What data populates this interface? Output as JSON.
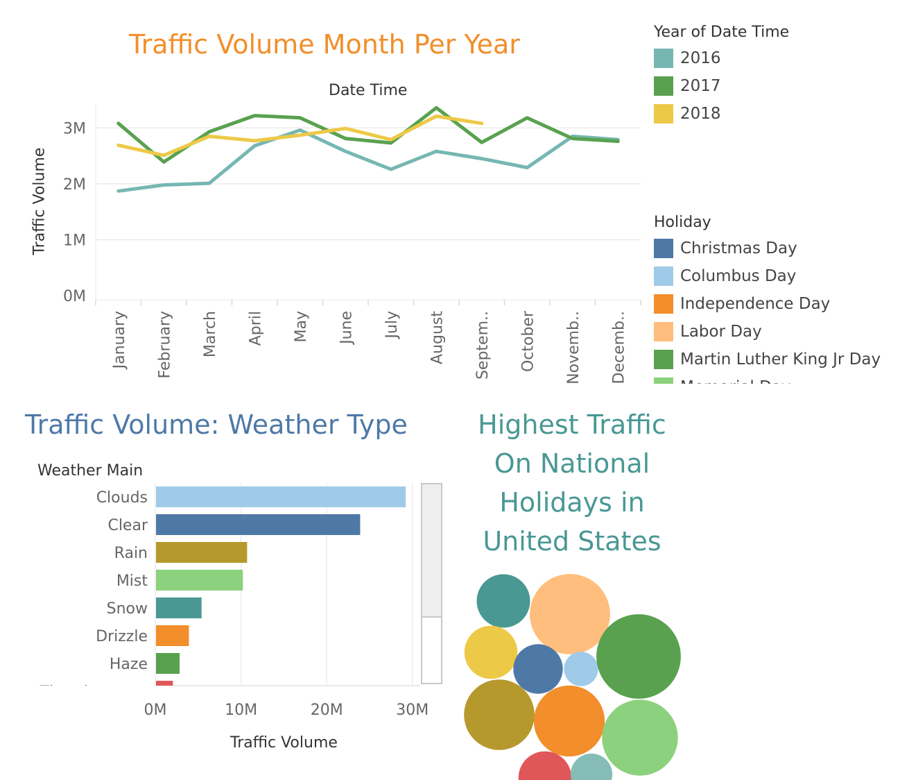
{
  "line_chart": {
    "title": "Traffic Volume Month Per Year",
    "title_color": "#F28E2B",
    "top_axis_label": "Date Time",
    "ylabel": "Traffic Volume",
    "y_ticks": [
      "0M",
      "1M",
      "2M",
      "3M"
    ],
    "x_tick_labels": [
      "January",
      "February",
      "March",
      "April",
      "May",
      "June",
      "July",
      "August",
      "Septem..",
      "October",
      "Novemb..",
      "Decemb.."
    ]
  },
  "year_legend": {
    "title": "Year of Date Time",
    "items": [
      {
        "label": "2016",
        "color": "#76B7B2"
      },
      {
        "label": "2017",
        "color": "#59A14F"
      },
      {
        "label": "2018",
        "color": "#EDC948"
      }
    ]
  },
  "holiday_legend": {
    "title": "Holiday",
    "items": [
      {
        "label": "Christmas Day",
        "color": "#4E79A7"
      },
      {
        "label": "Columbus Day",
        "color": "#A0CBE8"
      },
      {
        "label": "Independence Day",
        "color": "#F28E2B"
      },
      {
        "label": "Labor Day",
        "color": "#FFBE7D"
      },
      {
        "label": "Martin Luther King Jr Day",
        "color": "#59A14F"
      },
      {
        "label": "Memorial Day",
        "color": "#8CD17D"
      }
    ]
  },
  "bar_chart": {
    "title": "Traffic Volume: Weather Type",
    "title_color": "#4E79A7",
    "row_header": "Weather Main",
    "xlabel": "Traffic Volume",
    "x_ticks": [
      "0M",
      "10M",
      "20M",
      "30M"
    ]
  },
  "bubble_chart": {
    "title_lines": [
      "Highest Traffic",
      "On National",
      "Holidays in",
      "United States"
    ],
    "title_color": "#499894"
  },
  "chart_data": [
    {
      "type": "line",
      "title": "Traffic Volume Month Per Year",
      "x": [
        "January",
        "February",
        "March",
        "April",
        "May",
        "June",
        "July",
        "August",
        "September",
        "October",
        "November",
        "December"
      ],
      "ylabel": "Traffic Volume",
      "ylim": [
        0,
        3500000
      ],
      "grid": true,
      "legend": "right",
      "series": [
        {
          "name": "2016",
          "color": "#76B7B2",
          "values": [
            1870000,
            1980000,
            2010000,
            2680000,
            2960000,
            2580000,
            2260000,
            2580000,
            2450000,
            2290000,
            2850000,
            2790000
          ]
        },
        {
          "name": "2017",
          "color": "#59A14F",
          "values": [
            3080000,
            2390000,
            2930000,
            3220000,
            3180000,
            2810000,
            2730000,
            3360000,
            2740000,
            3180000,
            2810000,
            2760000
          ]
        },
        {
          "name": "2018",
          "color": "#EDC948",
          "values": [
            2690000,
            2510000,
            2850000,
            2770000,
            2870000,
            2990000,
            2790000,
            3210000,
            3080000,
            null,
            null,
            null
          ]
        }
      ]
    },
    {
      "type": "bar",
      "title": "Traffic Volume: Weather Type",
      "orientation": "horizontal",
      "categories": [
        "Clouds",
        "Clear",
        "Rain",
        "Mist",
        "Snow",
        "Drizzle",
        "Haze",
        "Thunderstorm"
      ],
      "values": [
        29600000,
        24200000,
        10800000,
        10300000,
        5400000,
        3900000,
        2800000,
        2000000
      ],
      "colors": [
        "#A0CBE8",
        "#4E79A7",
        "#B6992D",
        "#8CD17D",
        "#499894",
        "#F28E2B",
        "#59A14F",
        "#E15759"
      ],
      "xlabel": "Traffic Volume",
      "xlim": [
        -1800000,
        33500000
      ]
    },
    {
      "type": "bubble",
      "title": "Highest Traffic On National Holidays in United States",
      "bubbles": [
        {
          "color": "#499894",
          "size": 1.0
        },
        {
          "color": "#FFBE7D",
          "size": 2.26
        },
        {
          "color": "#EDC948",
          "size": 0.99
        },
        {
          "color": "#4E79A7",
          "size": 0.86
        },
        {
          "color": "#A0CBE8",
          "size": 0.41
        },
        {
          "color": "#59A14F",
          "size": 2.5
        },
        {
          "color": "#B6992D",
          "size": 1.74
        },
        {
          "color": "#F28E2B",
          "size": 1.76
        },
        {
          "color": "#8CD17D",
          "size": 2.02
        },
        {
          "color": "#E15759",
          "size": 0.99
        },
        {
          "color": "#86BCB6",
          "size": 0.61
        }
      ]
    }
  ]
}
